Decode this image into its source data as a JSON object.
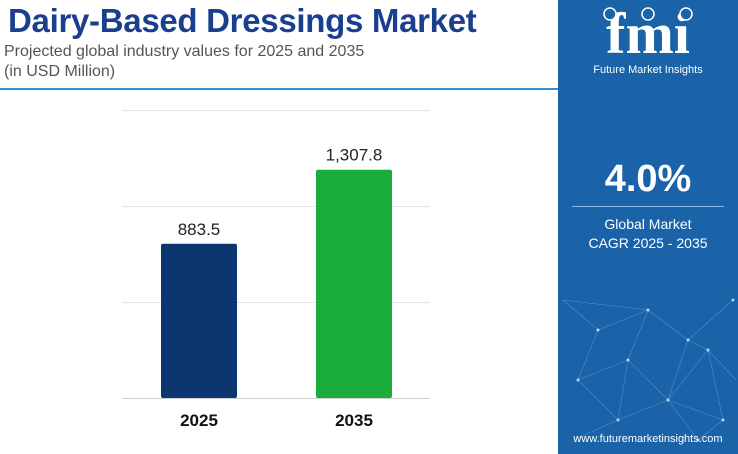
{
  "header": {
    "title": "Dairy-Based Dressings Market",
    "subtitle_line1": "Projected global industry values for 2025 and 2035",
    "subtitle_line2": "(in USD Million)"
  },
  "chart_data": {
    "type": "bar",
    "categories": [
      "2025",
      "2035"
    ],
    "values": [
      883.5,
      1307.8
    ],
    "value_labels": [
      "883.5",
      "1,307.8"
    ],
    "title": "Dairy-Based Dressings Market",
    "subtitle": "Projected global industry values for 2025 and 2035 (in USD Million)",
    "xlabel": "",
    "ylabel": "",
    "ylim": [
      0,
      1650
    ],
    "grid": true,
    "legend": "none",
    "colors": [
      "#0d3570",
      "#1aad3c"
    ]
  },
  "side_panel": {
    "logo_text": "fmi",
    "logo_subtitle": "Future Market Insights",
    "cagr_value": "4.0%",
    "cagr_label_line1": "Global Market",
    "cagr_label_line2": "CAGR 2025 - 2035",
    "website": "www.futuremarketinsights.com",
    "background_color": "#1a63a8"
  }
}
